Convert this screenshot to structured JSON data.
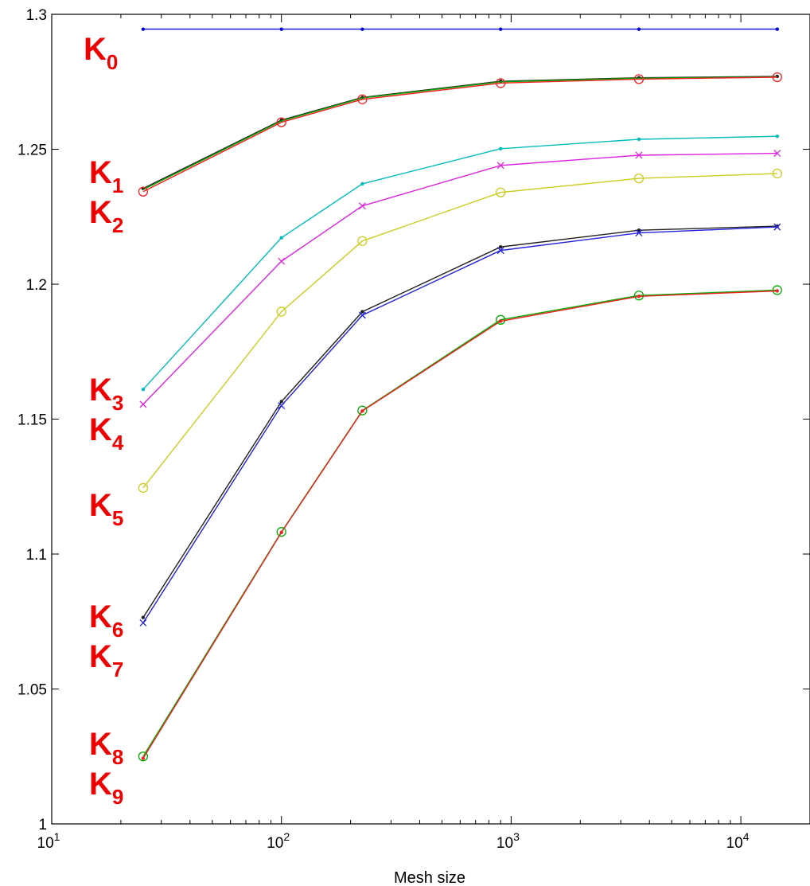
{
  "chart_data": {
    "type": "line",
    "xlabel": "Mesh size",
    "ylabel": "",
    "title": "",
    "x_scale": "log",
    "xlim": [
      10,
      20000
    ],
    "ylim": [
      1.0,
      1.3
    ],
    "x_ticks": [
      {
        "value": 10,
        "base": "10",
        "exp": "1"
      },
      {
        "value": 100,
        "base": "10",
        "exp": "2"
      },
      {
        "value": 1000,
        "base": "10",
        "exp": "3"
      },
      {
        "value": 10000,
        "base": "10",
        "exp": "4"
      }
    ],
    "y_ticks": [
      {
        "value": 1.0,
        "label": "1"
      },
      {
        "value": 1.05,
        "label": "1.05"
      },
      {
        "value": 1.1,
        "label": "1.1"
      },
      {
        "value": 1.15,
        "label": "1.15"
      },
      {
        "value": 1.2,
        "label": "1.2"
      },
      {
        "value": 1.25,
        "label": "1.25"
      },
      {
        "value": 1.3,
        "label": "1.3"
      }
    ],
    "grid": false,
    "x": [
      25,
      100,
      225,
      900,
      3600,
      14400
    ],
    "series": [
      {
        "color": "#0000dd",
        "marker": "dot",
        "values": [
          1.2945,
          1.2945,
          1.2945,
          1.2945,
          1.2945,
          1.2945
        ]
      },
      {
        "color": "#202020",
        "marker": "dot",
        "values": [
          1.2355,
          1.2608,
          1.2692,
          1.2752,
          1.2765,
          1.277
        ]
      },
      {
        "color": "#00aa00",
        "marker": "none",
        "values": [
          1.235,
          1.2605,
          1.269,
          1.275,
          1.2763,
          1.2768
        ]
      },
      {
        "color": "#ee2222",
        "marker": "circle",
        "values": [
          1.2343,
          1.26,
          1.2685,
          1.2745,
          1.276,
          1.2767
        ]
      },
      {
        "color": "#00bbbb",
        "marker": "dot",
        "values": [
          1.161,
          1.2172,
          1.2372,
          1.2502,
          1.2537,
          1.2548
        ]
      },
      {
        "color": "#dd22dd",
        "marker": "x",
        "values": [
          1.1555,
          1.2085,
          1.229,
          1.244,
          1.2478,
          1.2485
        ]
      },
      {
        "color": "#cccc22",
        "marker": "circle",
        "values": [
          1.1245,
          1.1898,
          1.216,
          1.234,
          1.2392,
          1.241
        ]
      },
      {
        "color": "#202020",
        "marker": "dot",
        "values": [
          1.0765,
          1.1565,
          1.1898,
          1.2138,
          1.22,
          1.2215
        ]
      },
      {
        "color": "#2222dd",
        "marker": "x",
        "values": [
          1.0745,
          1.155,
          1.1885,
          1.2125,
          1.219,
          1.2212
        ]
      },
      {
        "color": "#00aa00",
        "marker": "circle",
        "values": [
          1.025,
          1.1082,
          1.1532,
          1.1868,
          1.1958,
          1.1978
        ]
      },
      {
        "color": "#ee2222",
        "marker": "dot",
        "values": [
          1.0243,
          1.108,
          1.153,
          1.1863,
          1.1955,
          1.1975
        ]
      }
    ],
    "annotations": [
      {
        "id": "k0",
        "base": "K",
        "sub": "0"
      },
      {
        "id": "k1",
        "base": "K",
        "sub": "1"
      },
      {
        "id": "k2",
        "base": "K",
        "sub": "2"
      },
      {
        "id": "k3",
        "base": "K",
        "sub": "3"
      },
      {
        "id": "k4",
        "base": "K",
        "sub": "4"
      },
      {
        "id": "k5",
        "base": "K",
        "sub": "5"
      },
      {
        "id": "k6",
        "base": "K",
        "sub": "6"
      },
      {
        "id": "k7",
        "base": "K",
        "sub": "7"
      },
      {
        "id": "k8",
        "base": "K",
        "sub": "8"
      },
      {
        "id": "k9",
        "base": "K",
        "sub": "9"
      }
    ]
  }
}
